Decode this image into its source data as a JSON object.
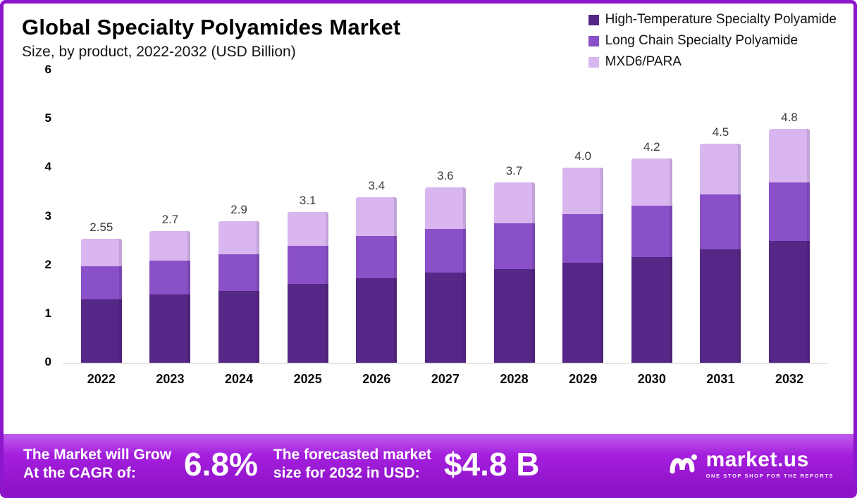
{
  "header": {
    "title": "Global Specialty Polyamides  Market",
    "subtitle": "Size, by product, 2022-2032 (USD Billion)"
  },
  "legend": [
    {
      "key": "high-temp",
      "label": "High-Temperature Specialty Polyamide",
      "color": "#552786"
    },
    {
      "key": "long-chain",
      "label": "Long Chain Specialty Polyamide",
      "color": "#8a50c7"
    },
    {
      "key": "mxd6",
      "label": "MXD6/PARA",
      "color": "#d9b6f0"
    }
  ],
  "chart_data": {
    "type": "bar",
    "stacked": true,
    "title": "Global Specialty Polyamides Market Size, by product, 2022-2032 (USD Billion)",
    "xlabel": "",
    "ylabel": "USD Billion",
    "ylim": [
      0,
      6
    ],
    "yticks": [
      0,
      1,
      2,
      3,
      4,
      5,
      6
    ],
    "grid": false,
    "legend_position": "top-right",
    "categories": [
      "2022",
      "2023",
      "2024",
      "2025",
      "2026",
      "2027",
      "2028",
      "2029",
      "2030",
      "2031",
      "2032"
    ],
    "series": [
      {
        "key": "high-temp",
        "name": "High-Temperature Specialty Polyamide",
        "color": "#552786",
        "values": [
          1.3,
          1.4,
          1.48,
          1.62,
          1.73,
          1.85,
          1.92,
          2.05,
          2.17,
          2.33,
          2.5
        ]
      },
      {
        "key": "long-chain",
        "name": "Long Chain Specialty Polyamide",
        "color": "#8a50c7",
        "values": [
          0.68,
          0.7,
          0.74,
          0.78,
          0.87,
          0.9,
          0.95,
          1.0,
          1.05,
          1.12,
          1.2
        ]
      },
      {
        "key": "mxd6",
        "name": "MXD6/PARA",
        "color": "#d9b6f0",
        "values": [
          0.57,
          0.6,
          0.68,
          0.7,
          0.8,
          0.85,
          0.83,
          0.95,
          0.98,
          1.05,
          1.1
        ]
      }
    ],
    "totals": [
      2.55,
      2.7,
      2.9,
      3.1,
      3.4,
      3.6,
      3.7,
      4.0,
      4.2,
      4.5,
      4.8
    ],
    "total_labels": [
      "2.55",
      "2.7",
      "2.9",
      "3.1",
      "3.4",
      "3.6",
      "3.7",
      "4.0",
      "4.2",
      "4.5",
      "4.8"
    ]
  },
  "footer": {
    "cagr_label_line1": "The Market will Grow",
    "cagr_label_line2": "At the CAGR of:",
    "cagr_value": "6.8%",
    "forecast_label_line1": "The forecasted market",
    "forecast_label_line2": "size for 2032 in USD:",
    "forecast_value": "$4.8 B",
    "brand": "market.us",
    "brand_tagline": "ONE STOP SHOP FOR THE REPORTS"
  }
}
